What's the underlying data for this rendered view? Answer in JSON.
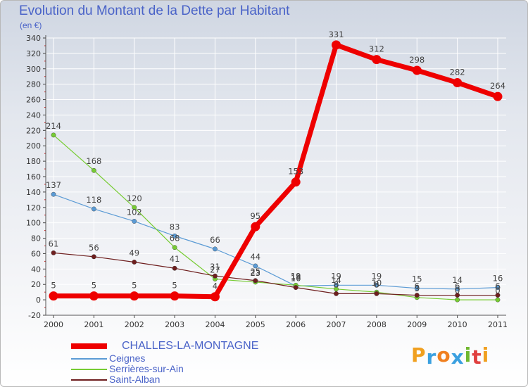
{
  "chart_data": {
    "type": "line",
    "title": "Evolution du Montant de la Dette par Habitant",
    "unit_label": "(en €)",
    "xlabel": "",
    "ylabel": "",
    "ylim": [
      -20,
      340
    ],
    "y_ticks": [
      -20,
      0,
      20,
      40,
      60,
      80,
      100,
      120,
      140,
      160,
      180,
      200,
      220,
      240,
      260,
      280,
      300,
      320,
      340
    ],
    "categories": [
      "2000",
      "2001",
      "2002",
      "2003",
      "2004",
      "2005",
      "2006",
      "2007",
      "2008",
      "2009",
      "2010",
      "2011"
    ],
    "series": [
      {
        "name": "CHALLES-LA-MONTAGNE",
        "color": "#ee0000",
        "emphasis": true,
        "values": [
          5,
          5,
          5,
          5,
          4,
          95,
          153,
          331,
          312,
          298,
          282,
          264
        ],
        "labels": [
          "5",
          "5",
          "5",
          "5",
          "4",
          "95",
          "153",
          "331",
          "312",
          "298",
          "282",
          "264"
        ]
      },
      {
        "name": "Ceignes",
        "color": "#5b9bd5",
        "emphasis": false,
        "values": [
          137,
          118,
          102,
          83,
          66,
          44,
          18,
          19,
          19,
          15,
          14,
          16
        ],
        "labels": [
          "137",
          "118",
          "102",
          "83",
          "66",
          "44",
          "18",
          "19",
          "19",
          "15",
          "14",
          "16"
        ]
      },
      {
        "name": "Serrières-sur-Ain",
        "color": "#77cc33",
        "emphasis": false,
        "values": [
          214,
          168,
          120,
          68,
          27,
          23,
          19,
          14,
          10,
          3,
          0,
          0
        ],
        "labels": [
          "214",
          "168",
          "120",
          "68",
          "27",
          "23",
          "19",
          "14",
          "10",
          "3",
          "0",
          "0"
        ]
      },
      {
        "name": "Saint-Alban",
        "color": "#6e1e1e",
        "emphasis": false,
        "values": [
          61,
          56,
          49,
          41,
          31,
          25,
          16,
          8,
          8,
          6,
          6,
          6
        ],
        "labels": [
          "61",
          "56",
          "49",
          "41",
          "31",
          "25",
          "16",
          "8",
          "8",
          "6",
          "6",
          "6"
        ]
      }
    ]
  },
  "branding": {
    "logo_letters": [
      "P",
      "r",
      "o",
      "x",
      "i",
      "t",
      "i"
    ],
    "logo_colors": [
      "#f0a020",
      "#3aa0e0",
      "#f08020",
      "#3aa0e0",
      "#70b830",
      "#e04040",
      "#f0a020"
    ]
  }
}
